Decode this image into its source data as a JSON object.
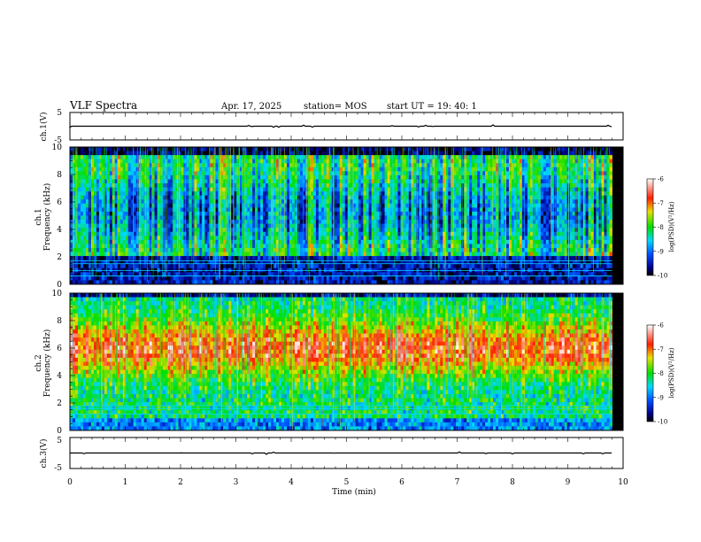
{
  "header": {
    "title": "VLF Spectra",
    "date": "Apr. 17, 2025",
    "station": "station= MOS",
    "start": "start  UT  =   19: 40: 1"
  },
  "chart_data": [
    {
      "type": "line",
      "panel": "ch1-voltage",
      "ylabel": "ch.1(V)",
      "ylim": [
        -5,
        5
      ],
      "yticks": [
        "5",
        "-5"
      ],
      "xlim": [
        0,
        10
      ],
      "series": [
        {
          "x": [
            0,
            9.8
          ],
          "y": [
            0,
            0
          ]
        }
      ]
    },
    {
      "type": "heatmap",
      "panel": "ch1-spectrogram",
      "ylabel": [
        "ch.1",
        "Frequency (kHz)"
      ],
      "ylim": [
        0,
        10
      ],
      "yticks": [
        "0",
        "2",
        "4",
        "6",
        "8",
        "10"
      ],
      "xlim": [
        0,
        9.8
      ],
      "colorbar": {
        "label": "log(PSD)(V²/Hz)",
        "range": [
          -10,
          -6
        ],
        "ticks": [
          "-6",
          "-7",
          "-8",
          "-9",
          "-10"
        ]
      },
      "interference_lines_khz": [
        0.6,
        1.0,
        1.5,
        1.7
      ]
    },
    {
      "type": "heatmap",
      "panel": "ch2-spectrogram",
      "ylabel": [
        "ch.2",
        "Frequency (kHz)"
      ],
      "ylim": [
        0,
        10
      ],
      "yticks": [
        "0",
        "2",
        "4",
        "6",
        "8",
        "10"
      ],
      "xlim": [
        0,
        9.8
      ],
      "colorbar": {
        "label": "log(PSD)(V²/Hz)",
        "range": [
          -10,
          -6
        ],
        "ticks": [
          "-6",
          "-7",
          "-8",
          "-9",
          "-10"
        ]
      },
      "interference_lines_khz": [
        1.2,
        1.6,
        1.8
      ]
    },
    {
      "type": "line",
      "panel": "ch3-voltage",
      "ylabel": "ch.3(V)",
      "ylim": [
        -5,
        5
      ],
      "yticks": [
        "5",
        "-5"
      ],
      "xlim": [
        0,
        10
      ],
      "xlabel": "Time (min)",
      "xticks": [
        "0",
        "1",
        "2",
        "3",
        "4",
        "5",
        "6",
        "7",
        "8",
        "9",
        "10"
      ],
      "series": [
        {
          "x": [
            0,
            9.8
          ],
          "y": [
            0,
            0
          ]
        }
      ]
    }
  ]
}
